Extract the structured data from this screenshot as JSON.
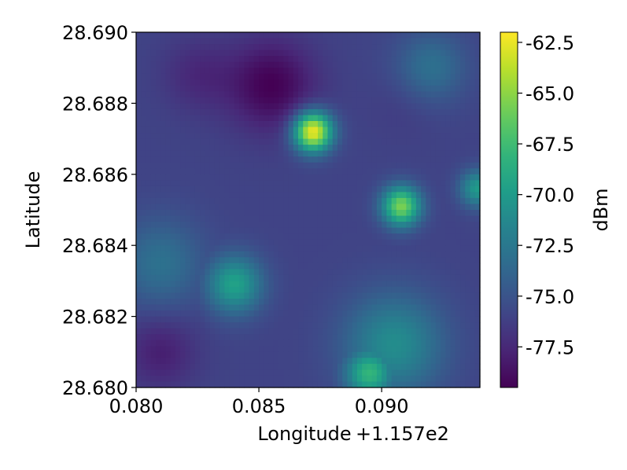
{
  "chart_data": {
    "type": "heatmap",
    "title": "",
    "xlabel": "Longitude",
    "x_offset_text": "+1.157e2",
    "ylabel": "Latitude",
    "colorbar_label": "dBm",
    "xlim": [
      0.08,
      0.094
    ],
    "ylim": [
      28.68,
      28.69
    ],
    "x_ticks": [
      "0.080",
      "0.085",
      "0.090"
    ],
    "x_tick_values": [
      0.08,
      0.085,
      0.09
    ],
    "y_ticks": [
      "28.680",
      "28.682",
      "28.684",
      "28.686",
      "28.688",
      "28.690"
    ],
    "y_tick_values": [
      28.68,
      28.682,
      28.684,
      28.686,
      28.688,
      28.69
    ],
    "color_range": [
      -79.5,
      -62.0
    ],
    "colorbar_ticks": [
      "-62.5",
      "-65.0",
      "-67.5",
      "-70.0",
      "-72.5",
      "-75.0",
      "-77.5"
    ],
    "colorbar_tick_values": [
      -62.5,
      -65.0,
      -67.5,
      -70.0,
      -72.5,
      -75.0,
      -77.5
    ],
    "colormap": "viridis",
    "background_dBm": -76,
    "field_features": [
      {
        "lon": 0.0872,
        "lat": 28.6872,
        "dBm": -62.0,
        "radius_deg": 0.0011,
        "type": "peak"
      },
      {
        "lon": 0.0908,
        "lat": 28.6851,
        "dBm": -65.5,
        "radius_deg": 0.0011,
        "type": "peak"
      },
      {
        "lon": 0.084,
        "lat": 28.6829,
        "dBm": -69.5,
        "radius_deg": 0.0016,
        "type": "peak"
      },
      {
        "lon": 0.0895,
        "lat": 28.6804,
        "dBm": -68.0,
        "radius_deg": 0.0014,
        "type": "peak"
      },
      {
        "lon": 0.0905,
        "lat": 28.6812,
        "dBm": -71.0,
        "radius_deg": 0.0028,
        "type": "peak"
      },
      {
        "lon": 0.0939,
        "lat": 28.6856,
        "dBm": -70.0,
        "radius_deg": 0.001,
        "type": "peak"
      },
      {
        "lon": 0.092,
        "lat": 28.689,
        "dBm": -73.0,
        "radius_deg": 0.002,
        "type": "peak"
      },
      {
        "lon": 0.081,
        "lat": 28.6835,
        "dBm": -73.0,
        "radius_deg": 0.0025,
        "type": "peak"
      },
      {
        "lon": 0.0855,
        "lat": 28.6885,
        "dBm": -79.5,
        "radius_deg": 0.0025,
        "type": "trough"
      },
      {
        "lon": 0.081,
        "lat": 28.681,
        "dBm": -78.0,
        "radius_deg": 0.002,
        "type": "trough"
      },
      {
        "lon": 0.0825,
        "lat": 28.6888,
        "dBm": -77.5,
        "radius_deg": 0.002,
        "type": "trough"
      },
      {
        "lon": 0.091,
        "lat": 28.688,
        "dBm": -76.5,
        "radius_deg": 0.002,
        "type": "trough"
      }
    ]
  }
}
